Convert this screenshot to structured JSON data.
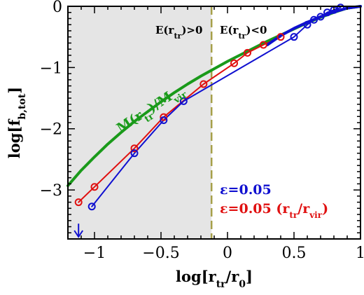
{
  "chart_data": {
    "type": "line",
    "xlabel": {
      "main": "log[r",
      "sub1": "tr",
      "mid": "/r",
      "sub2": "0",
      "end": "]"
    },
    "ylabel": {
      "main": "log[f",
      "sub": "b,tot",
      "end": "]"
    },
    "xlim": [
      -1.2,
      1.0
    ],
    "ylim": [
      -3.8,
      0.0
    ],
    "xticks": [
      -1,
      -0.5,
      0,
      0.5,
      1
    ],
    "xtick_labels": [
      "−1",
      "−0.5",
      "0",
      "0.5",
      "1"
    ],
    "yticks": [
      0,
      -1,
      -2,
      -3
    ],
    "ytick_labels": [
      "0",
      "−1",
      "−2",
      "−3"
    ],
    "shaded_region": {
      "x_from": -1.2,
      "x_to": -0.12,
      "color": "#e5e5e5"
    },
    "vline": {
      "x": -0.12,
      "color": "#a6a04a"
    },
    "region_labels": {
      "left": {
        "main": "E(r",
        "sub": "tr",
        "end": ")>0"
      },
      "right": {
        "main": "E(r",
        "sub": "tr",
        "end": ")<0"
      }
    },
    "mass_label": {
      "main": "M(r",
      "sub1": "tr",
      "mid": ")/M",
      "sub2": "vir"
    },
    "legend": [
      {
        "text": "ε=0.05",
        "color": "#1010d0"
      },
      {
        "main": "ε=0.05 (r",
        "sub1": "tr",
        "mid": "/r",
        "sub2": "vir",
        "end": ")",
        "color": "#e01010"
      }
    ],
    "upper_limit_arrow": {
      "x": -1.12,
      "y_top": -3.55,
      "color": "#1010d0"
    },
    "series": [
      {
        "color": "#1a9a1a",
        "markers": false,
        "x": [
          -1.2,
          -1.1,
          -1.0,
          -0.9,
          -0.8,
          -0.7,
          -0.6,
          -0.5,
          -0.4,
          -0.3,
          -0.2,
          -0.1,
          0.0,
          0.1,
          0.2,
          0.3,
          0.4,
          0.5,
          0.6,
          0.7,
          0.8,
          0.9,
          1.0
        ],
        "y": [
          -2.93,
          -2.68,
          -2.46,
          -2.25,
          -2.06,
          -1.88,
          -1.72,
          -1.56,
          -1.41,
          -1.27,
          -1.14,
          -1.02,
          -0.9,
          -0.79,
          -0.68,
          -0.57,
          -0.47,
          -0.37,
          -0.27,
          -0.18,
          -0.1,
          -0.03,
          0.0
        ]
      },
      {
        "color": "#e01010",
        "markers": true,
        "x": [
          -1.12,
          -1.0,
          -0.7,
          -0.48,
          -0.18,
          0.05,
          0.15,
          0.27,
          0.4
        ],
        "y": [
          -3.2,
          -2.95,
          -2.32,
          -1.81,
          -1.27,
          -0.93,
          -0.76,
          -0.63,
          -0.5
        ]
      },
      {
        "color": "#1010d0",
        "markers": true,
        "x": [
          -1.02,
          -0.7,
          -0.48,
          -0.33,
          0.5,
          0.6,
          0.65,
          0.7,
          0.75,
          0.8,
          0.85
        ],
        "y": [
          -3.27,
          -2.4,
          -1.86,
          -1.55,
          -0.5,
          -0.3,
          -0.22,
          -0.17,
          -0.1,
          -0.06,
          -0.02
        ]
      },
      {
        "color": "#1010d0",
        "markers": false,
        "x": [
          0.3,
          0.4,
          0.5,
          0.6,
          0.7,
          0.8,
          0.9,
          1.0
        ],
        "y": [
          -0.63,
          -0.48,
          -0.36,
          -0.26,
          -0.17,
          -0.09,
          -0.03,
          0.0
        ]
      }
    ]
  }
}
